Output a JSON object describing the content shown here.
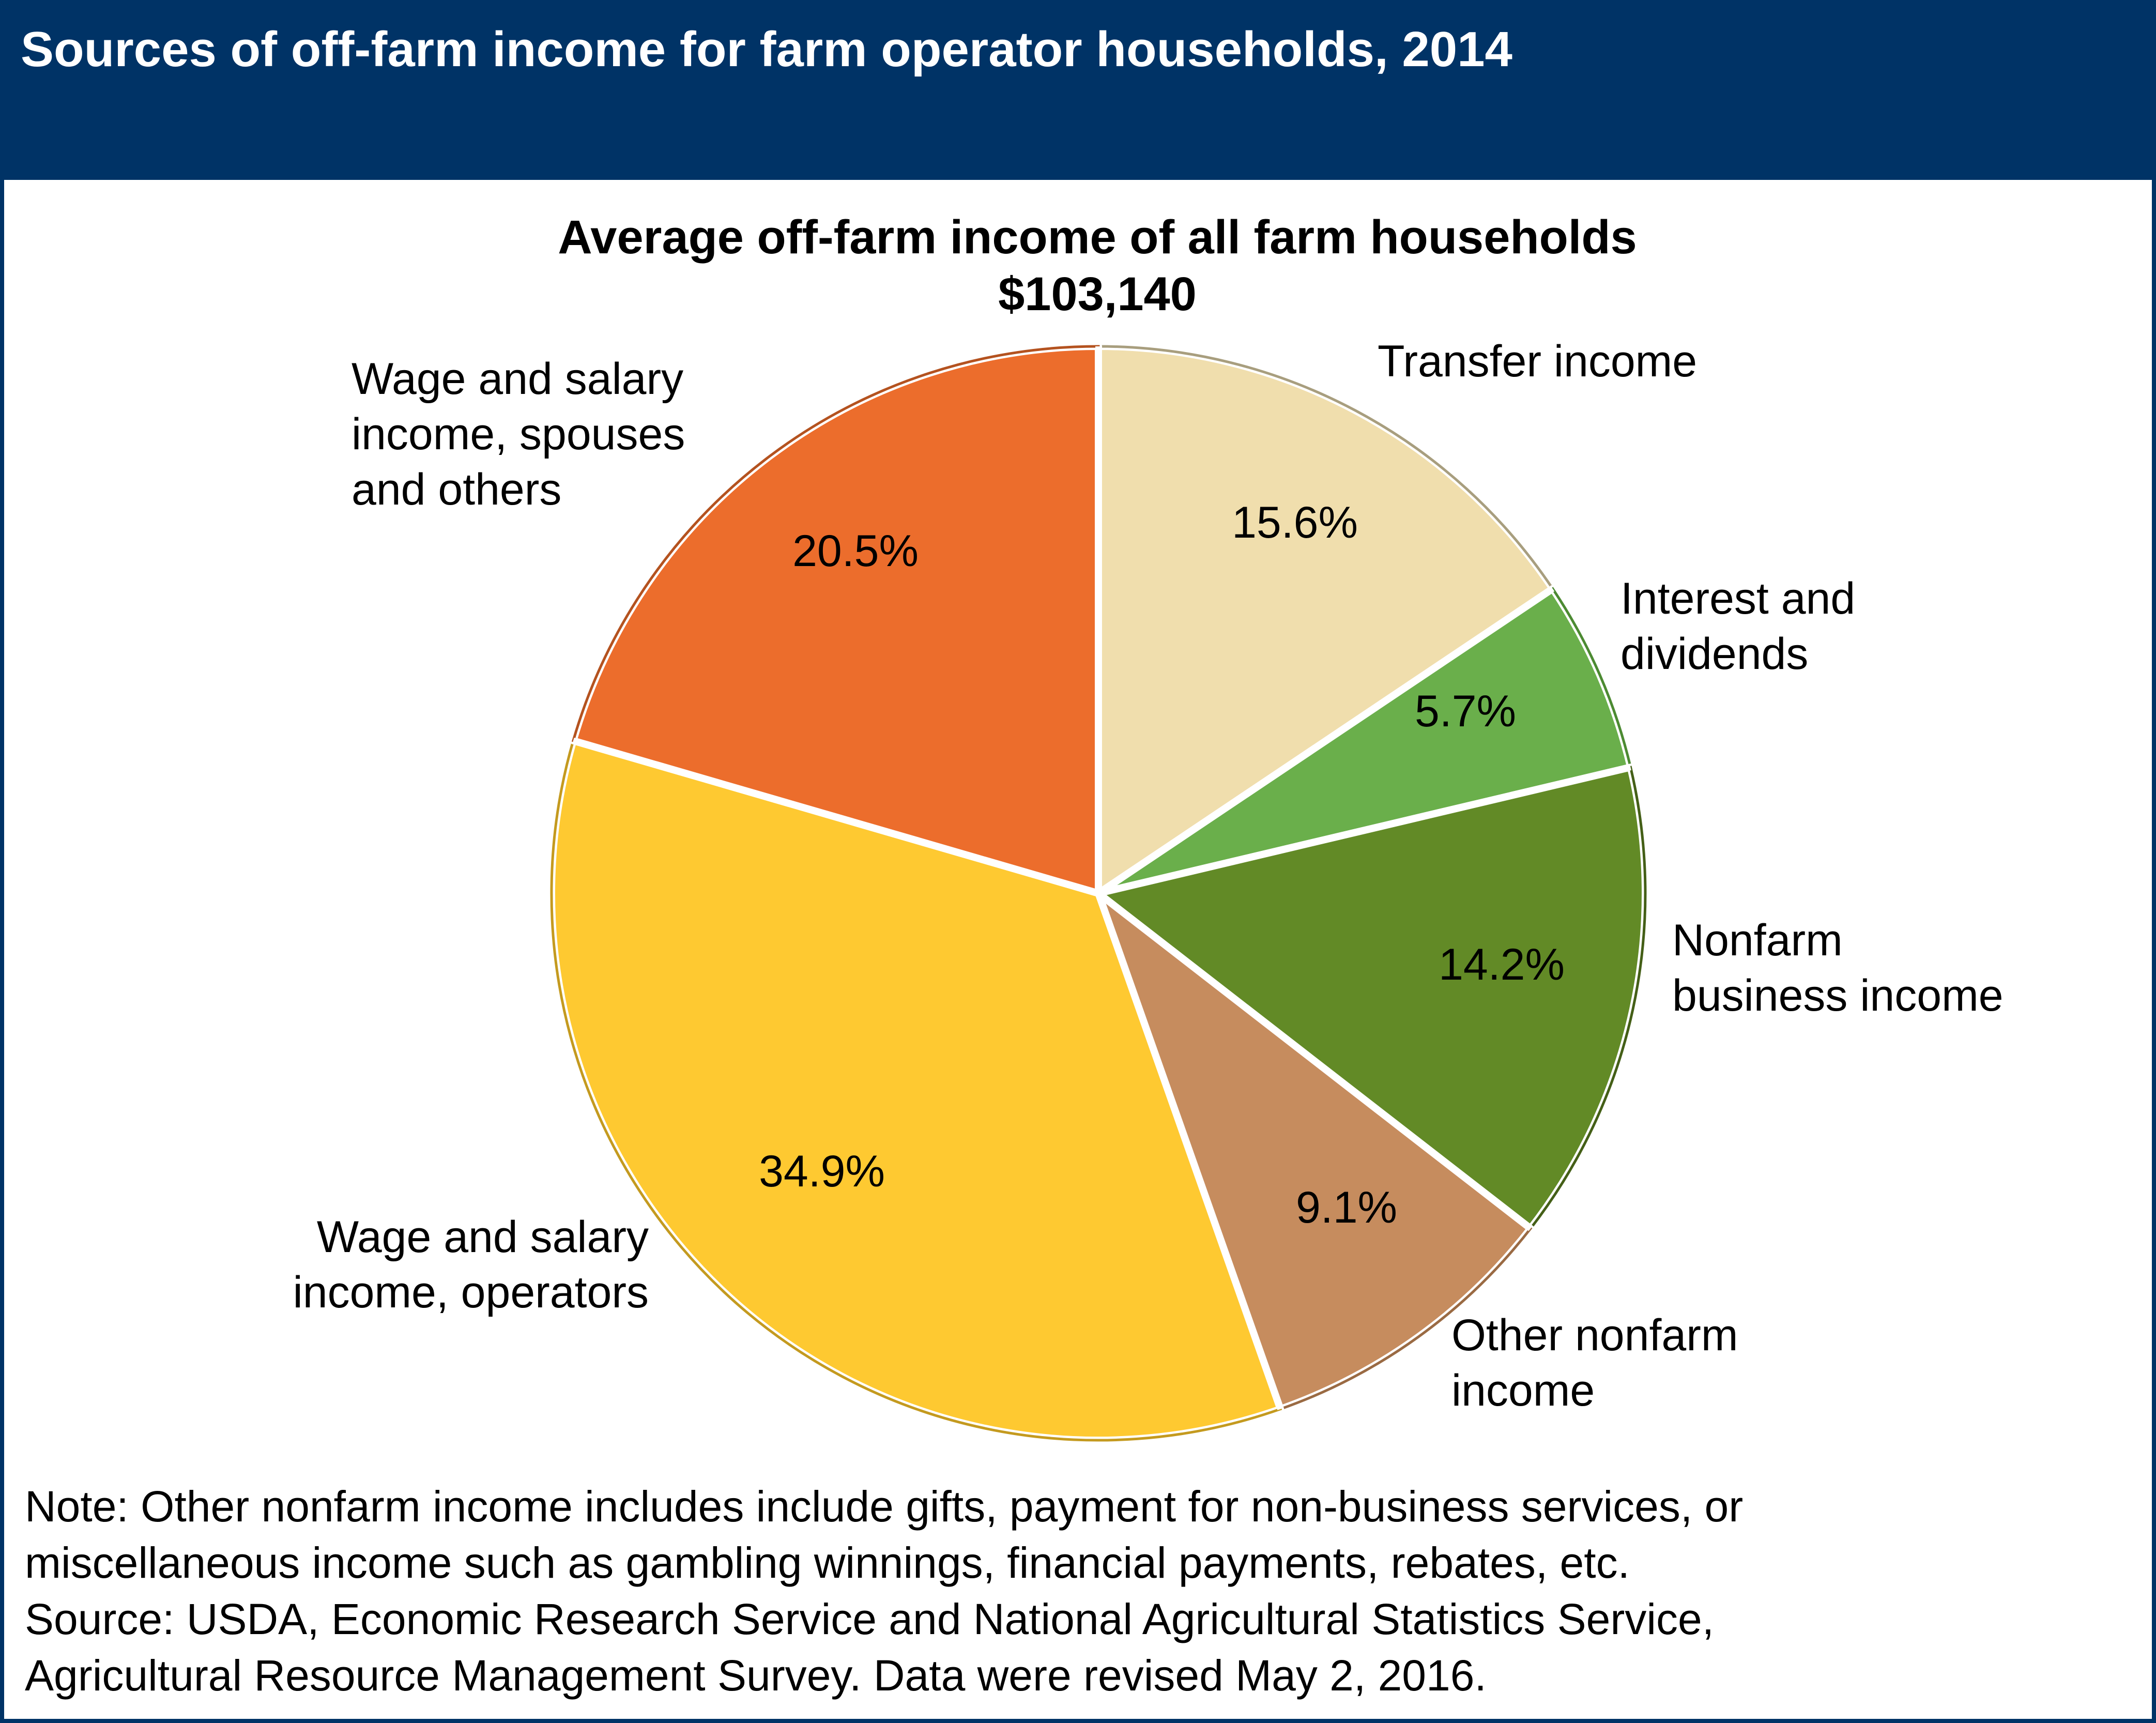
{
  "header": {
    "title": "Sources of off-farm income for farm operator households, 2014"
  },
  "chart_data": {
    "type": "pie",
    "title": "Average off-farm income of all farm households",
    "subtitle": "$103,140",
    "start_angle_deg": 0,
    "direction": "clockwise",
    "slices": [
      {
        "label_lines": [
          "Transfer income"
        ],
        "value": 15.6,
        "value_label": "15.6%",
        "color": "#F0DEAD",
        "stroke": "#A89E7E"
      },
      {
        "label_lines": [
          "Interest and",
          "dividends"
        ],
        "value": 5.7,
        "value_label": "5.7%",
        "color": "#6AAF4B",
        "stroke": "#4C8A32"
      },
      {
        "label_lines": [
          "Nonfarm",
          "business income"
        ],
        "value": 14.2,
        "value_label": "14.2%",
        "color": "#628A26",
        "stroke": "#445F17"
      },
      {
        "label_lines": [
          "Other nonfarm",
          "income"
        ],
        "value": 9.1,
        "value_label": "9.1%",
        "color": "#C68C5E",
        "stroke": "#9A6A43"
      },
      {
        "label_lines": [
          "Wage and salary",
          "income, operators"
        ],
        "value": 34.9,
        "value_label": "34.9%",
        "color": "#FEC931",
        "stroke": "#C49A1F"
      },
      {
        "label_lines": [
          "Wage and salary",
          "income, spouses",
          "and others"
        ],
        "value": 20.5,
        "value_label": "20.5%",
        "color": "#EC6D2C",
        "stroke": "#B4521F"
      }
    ]
  },
  "notes": {
    "line1": "Note: Other nonfarm income includes include gifts, payment for non-business services, or",
    "line2": "miscellaneous income such as gambling winnings, financial payments, rebates, etc.",
    "line3": "Source: USDA, Economic Research Service and National Agricultural Statistics Service,",
    "line4": "Agricultural Resource Management Survey. Data were revised May 2, 2016."
  }
}
